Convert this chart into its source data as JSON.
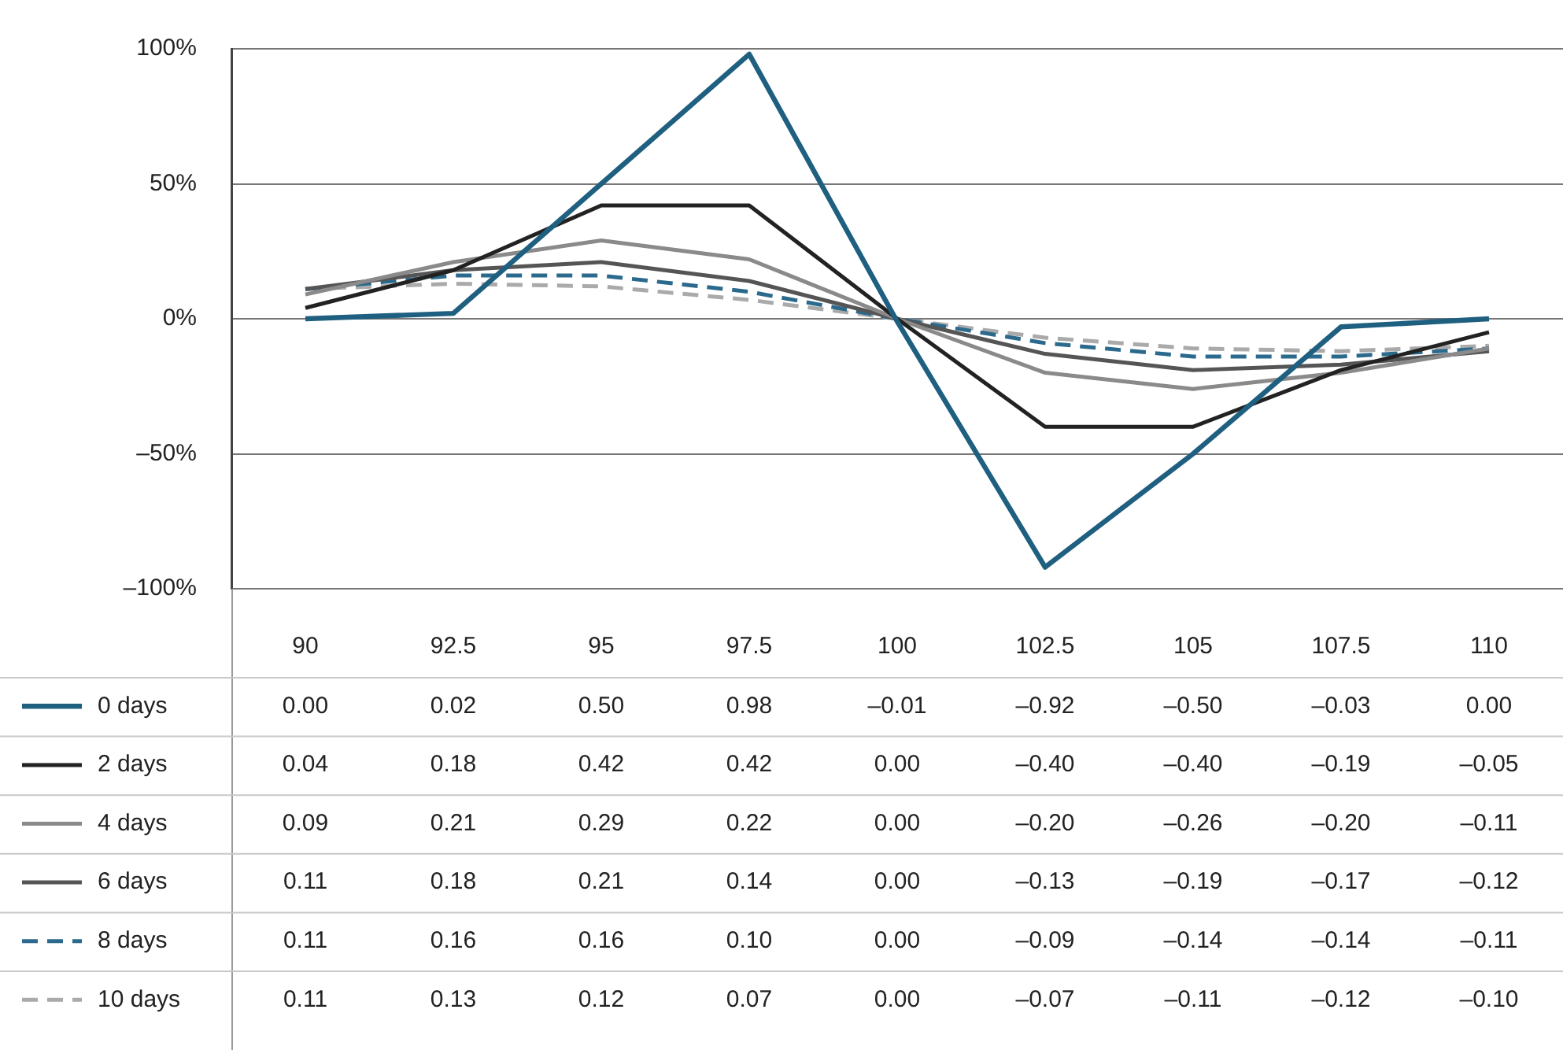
{
  "chart_data": {
    "type": "line",
    "categories": [
      "90",
      "92.5",
      "95",
      "97.5",
      "100",
      "102.5",
      "105",
      "107.5",
      "110"
    ],
    "ylim": [
      -1,
      1
    ],
    "yticks": [
      {
        "value": -1,
        "label": "–100%"
      },
      {
        "value": -0.5,
        "label": "–50%"
      },
      {
        "value": 0,
        "label": "0%"
      },
      {
        "value": 0.5,
        "label": "50%"
      },
      {
        "value": 1,
        "label": "100%"
      }
    ],
    "grid": "y",
    "legend": "bottom left",
    "marker": "none",
    "line_style": "solid",
    "series": [
      {
        "name": "0 days",
        "color": "#1f5f80",
        "values": [
          0.0,
          0.02,
          0.5,
          0.98,
          -0.01,
          -0.92,
          -0.5,
          -0.03,
          0.0
        ],
        "value_labels": [
          "0.00",
          "0.02",
          "0.50",
          "0.98",
          "–0.01",
          "–0.92",
          "–0.50",
          "–0.03",
          "0.00"
        ]
      },
      {
        "name": "2 days",
        "color": "#222222",
        "values": [
          0.04,
          0.18,
          0.42,
          0.42,
          0.0,
          -0.4,
          -0.4,
          -0.19,
          -0.05
        ],
        "value_labels": [
          "0.04",
          "0.18",
          "0.42",
          "0.42",
          "0.00",
          "–0.40",
          "–0.40",
          "–0.19",
          "–0.05"
        ]
      },
      {
        "name": "4 days",
        "color": "#8a8a8a",
        "values": [
          0.09,
          0.21,
          0.29,
          0.22,
          0.0,
          -0.2,
          -0.26,
          -0.2,
          -0.11
        ],
        "value_labels": [
          "0.09",
          "0.21",
          "0.29",
          "0.22",
          "0.00",
          "–0.20",
          "–0.26",
          "–0.20",
          "–0.11"
        ]
      },
      {
        "name": "6 days",
        "color": "#555555",
        "values": [
          0.11,
          0.18,
          0.21,
          0.14,
          0.0,
          -0.13,
          -0.19,
          -0.17,
          -0.12
        ],
        "value_labels": [
          "0.11",
          "0.18",
          "0.21",
          "0.14",
          "0.00",
          "–0.13",
          "–0.19",
          "–0.17",
          "–0.12"
        ]
      },
      {
        "name": "8 days",
        "color": "#2b6a8c",
        "line_style": "dashed",
        "values": [
          0.11,
          0.16,
          0.16,
          0.1,
          0.0,
          -0.09,
          -0.14,
          -0.14,
          -0.11
        ],
        "value_labels": [
          "0.11",
          "0.16",
          "0.16",
          "0.10",
          "0.00",
          "–0.09",
          "–0.14",
          "–0.14",
          "–0.11"
        ]
      },
      {
        "name": "10 days",
        "color": "#aaaaaa",
        "line_style": "dashed",
        "values": [
          0.11,
          0.13,
          0.12,
          0.07,
          0.0,
          -0.07,
          -0.11,
          -0.12,
          -0.1
        ],
        "value_labels": [
          "0.11",
          "0.13",
          "0.12",
          "0.07",
          "0.00",
          "–0.07",
          "–0.11",
          "–0.12",
          "–0.10"
        ]
      }
    ]
  }
}
